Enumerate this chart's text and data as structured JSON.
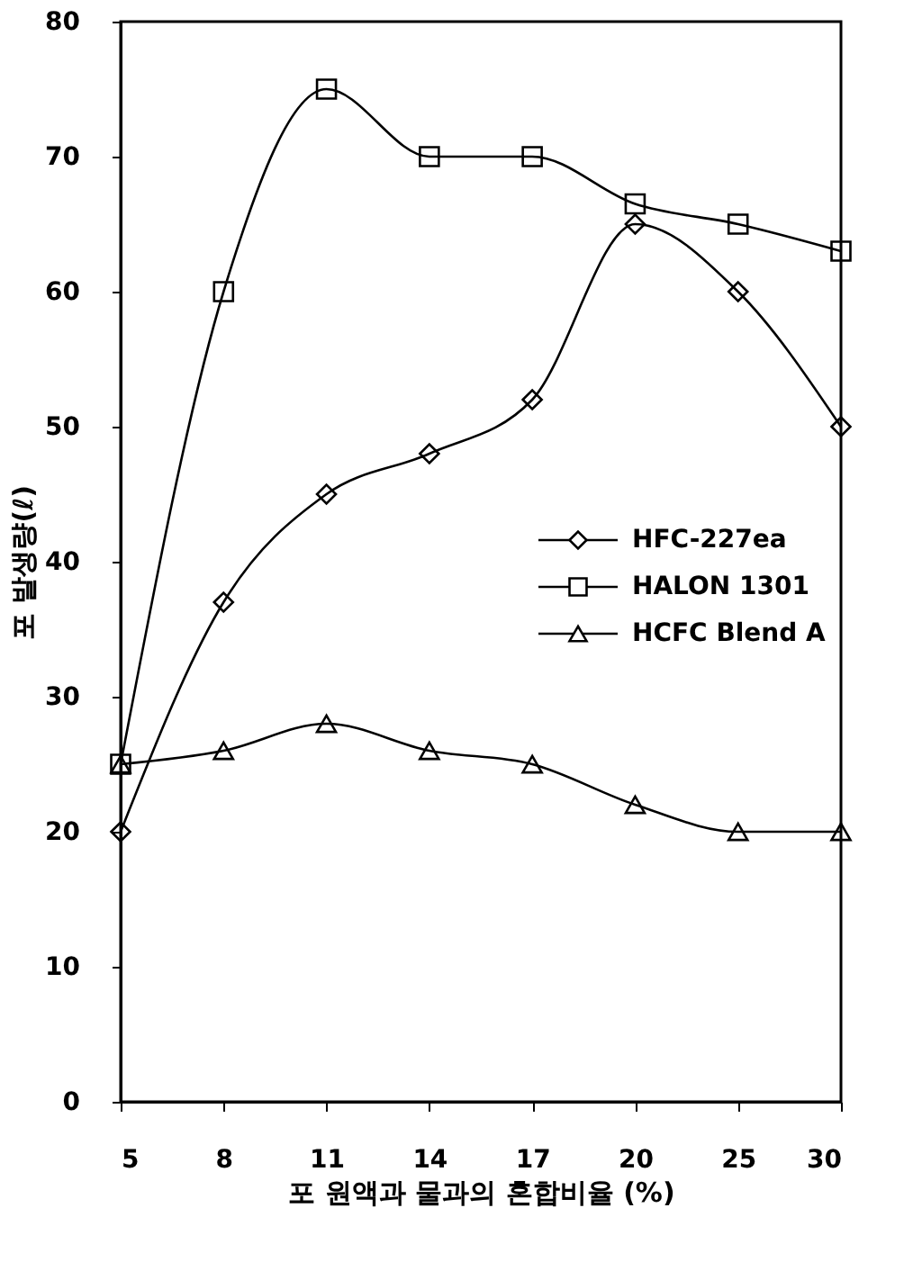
{
  "chart_data": {
    "type": "line",
    "xlabel": "포 원액과 물과의 혼합비율 (%)",
    "ylabel": "포 발생량(ℓ)",
    "categories": [
      "5",
      "8",
      "11",
      "14",
      "17",
      "20",
      "25",
      "30"
    ],
    "series": [
      {
        "name": "HFC-227ea",
        "color": "#000000",
        "marker": "diamond",
        "values": [
          20,
          37,
          45,
          48,
          52,
          65,
          60,
          50
        ]
      },
      {
        "name": "HALON 1301",
        "color": "#000000",
        "marker": "square",
        "values": [
          25,
          60,
          75,
          70,
          70,
          66.5,
          65,
          63
        ]
      },
      {
        "name": "HCFC Blend A",
        "color": "#000000",
        "marker": "triangle",
        "values": [
          25,
          26,
          28,
          26,
          25,
          22,
          20,
          20
        ]
      }
    ],
    "ylim": [
      0,
      80
    ],
    "yticks": [
      0,
      10,
      20,
      30,
      40,
      50,
      60,
      70,
      80
    ],
    "grid": false,
    "legend": "right",
    "line_style": "solid"
  }
}
